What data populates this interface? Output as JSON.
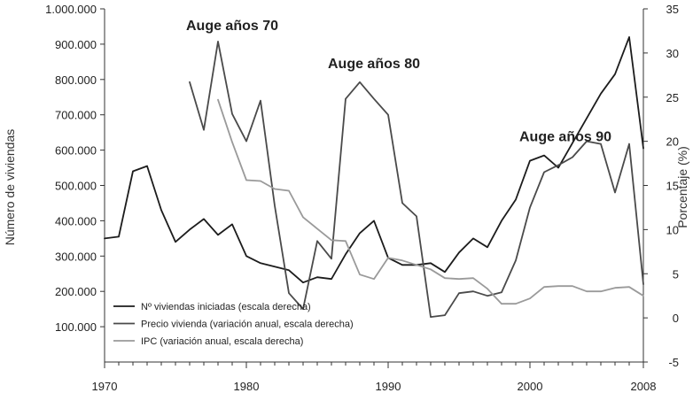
{
  "chart_data": {
    "type": "line",
    "title": "",
    "xlabel": "",
    "ylabel_left": "Número de viviendas",
    "ylabel_right": "Porcentaje (%)",
    "xlim": [
      1970,
      2008
    ],
    "x_ticks": [
      1970,
      1980,
      1990,
      2000,
      2008
    ],
    "ylim_left": [
      0,
      1000000
    ],
    "y_ticks_left": [
      "100.000",
      "200.000",
      "300.000",
      "400.000",
      "500.000",
      "600.000",
      "700.000",
      "800.000",
      "900.000",
      "1.000.000"
    ],
    "y_ticks_left_values": [
      100000,
      200000,
      300000,
      400000,
      500000,
      600000,
      700000,
      800000,
      900000,
      1000000
    ],
    "ylim_right": [
      -5,
      35
    ],
    "y_ticks_right": [
      "-5",
      "0",
      "5",
      "10",
      "15",
      "20",
      "25",
      "30",
      "35"
    ],
    "y_ticks_right_values": [
      -5,
      0,
      5,
      10,
      15,
      20,
      25,
      30,
      35
    ],
    "grid": false,
    "legend_position": "bottom-left",
    "annotations": [
      {
        "text": "Auge años 70",
        "x": 1979,
        "y": 32.6
      },
      {
        "text": "Auge años 80",
        "x": 1989,
        "y": 28.3
      },
      {
        "text": "Auge años 90",
        "x": 2002.5,
        "y": 20.0
      }
    ],
    "series": [
      {
        "name": "Nº viviendas iniciadas (escala derecha)",
        "axis": "left",
        "color": "#1c1c1c",
        "x": [
          1970,
          1971,
          1972,
          1973,
          1974,
          1975,
          1976,
          1977,
          1978,
          1979,
          1980,
          1981,
          1982,
          1983,
          1984,
          1985,
          1986,
          1987,
          1988,
          1989,
          1990,
          1991,
          1992,
          1993,
          1994,
          1995,
          1996,
          1997,
          1998,
          1999,
          2000,
          2001,
          2002,
          2003,
          2004,
          2005,
          2006,
          2007,
          2008
        ],
        "values": [
          350000,
          355000,
          540000,
          555000,
          430000,
          340000,
          375000,
          405000,
          360000,
          390000,
          300000,
          280000,
          270000,
          260000,
          225000,
          240000,
          235000,
          305000,
          365000,
          400000,
          295000,
          275000,
          275000,
          280000,
          255000,
          310000,
          350000,
          325000,
          400000,
          460000,
          570000,
          585000,
          550000,
          620000,
          690000,
          760000,
          815000,
          920000,
          605000
        ]
      },
      {
        "name": "Precio vivienda (variación anual, escala derecha)",
        "axis": "right",
        "color": "#4a4a4a",
        "x": [
          1976,
          1977,
          1978,
          1979,
          1980,
          1981,
          1982,
          1983,
          1984,
          1985,
          1986,
          1987,
          1988,
          1989,
          1990,
          1991,
          1992,
          1993,
          1994,
          1995,
          1996,
          1997,
          1998,
          1999,
          2000,
          2001,
          2002,
          2003,
          2004,
          2005,
          2006,
          2007,
          2008
        ],
        "values": [
          26.7,
          21.3,
          31.3,
          23.1,
          20.0,
          24.6,
          12.7,
          2.8,
          1.0,
          8.7,
          6.7,
          24.8,
          26.7,
          24.8,
          23.0,
          13.0,
          11.5,
          0.1,
          0.3,
          2.8,
          3.0,
          2.5,
          2.9,
          6.5,
          12.5,
          16.5,
          17.3,
          18.2,
          20.0,
          19.7,
          14.2,
          19.7,
          3.8
        ]
      },
      {
        "name": "IPC (variación anual, escala derecha)",
        "axis": "right",
        "color": "#9a9a9a",
        "x": [
          1978,
          1979,
          1980,
          1981,
          1982,
          1983,
          1984,
          1985,
          1986,
          1987,
          1988,
          1989,
          1990,
          1991,
          1992,
          1993,
          1994,
          1995,
          1996,
          1997,
          1998,
          1999,
          2000,
          2001,
          2002,
          2003,
          2004,
          2005,
          2006,
          2007,
          2008
        ],
        "values": [
          24.7,
          19.9,
          15.6,
          15.5,
          14.6,
          14.4,
          11.4,
          10.1,
          8.8,
          8.7,
          4.9,
          4.4,
          6.8,
          6.5,
          6.0,
          5.5,
          4.5,
          4.4,
          4.5,
          3.3,
          1.6,
          1.6,
          2.2,
          3.5,
          3.6,
          3.6,
          3.0,
          3.0,
          3.4,
          3.5,
          2.5
        ]
      }
    ]
  }
}
